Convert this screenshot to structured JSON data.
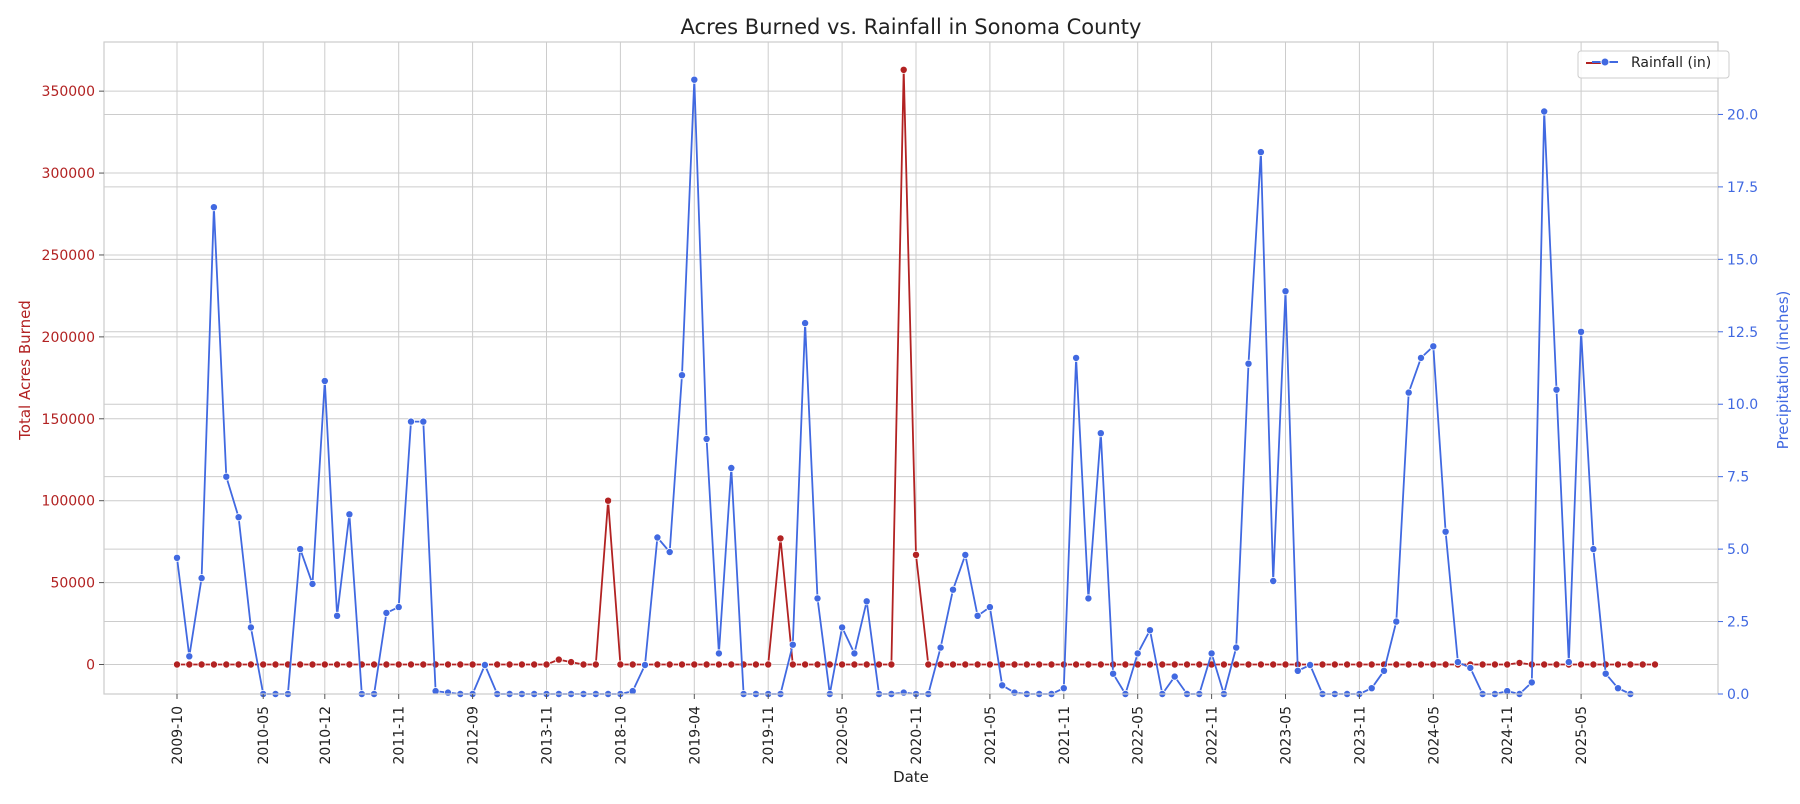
{
  "chart_data": {
    "type": "line",
    "title": "Acres Burned vs. Rainfall in Sonoma County",
    "xlabel": "Date",
    "ylabel_left": "Total Acres Burned",
    "ylabel_right": "Precipitation (inches)",
    "ylim_left": [
      -18000,
      380000
    ],
    "ylim_right": [
      0,
      22.5
    ],
    "yticks_left": [
      0,
      50000,
      100000,
      150000,
      200000,
      250000,
      300000,
      350000
    ],
    "yticks_right": [
      "0.0",
      "2.5",
      "5.0",
      "7.5",
      "10.0",
      "12.5",
      "15.0",
      "17.5",
      "20.0"
    ],
    "xtick_labels": [
      "2009-10",
      "2010-05",
      "2010-12",
      "2011-11",
      "2012-09",
      "2013-11",
      "2018-10",
      "2019-04",
      "2019-11",
      "2020-05",
      "2020-11",
      "2021-05",
      "2021-11",
      "2022-05",
      "2022-11",
      "2023-05",
      "2023-11",
      "2024-05",
      "2024-11",
      "2025-05"
    ],
    "xtick_index": [
      0,
      7,
      12,
      18,
      24,
      30,
      36,
      42,
      48,
      54,
      60,
      66,
      72,
      78,
      84,
      90,
      96,
      102,
      108,
      114
    ],
    "grid": true,
    "legend": {
      "position": "top-right",
      "entries": [
        "Rainfall (in)"
      ]
    },
    "series": [
      {
        "name": "Total Acres Burned",
        "axis": "left",
        "color": "#b22222",
        "values": [
          0,
          0,
          0,
          0,
          0,
          0,
          0,
          0,
          0,
          0,
          0,
          0,
          0,
          0,
          0,
          0,
          0,
          0,
          0,
          0,
          0,
          0,
          0,
          0,
          0,
          0,
          0,
          0,
          0,
          0,
          0,
          3000,
          1500,
          0,
          0,
          100000,
          0,
          0,
          0,
          0,
          0,
          0,
          0,
          0,
          0,
          0,
          0,
          0,
          0,
          77000,
          0,
          0,
          0,
          0,
          0,
          0,
          0,
          0,
          0,
          363000,
          67000,
          0,
          0,
          0,
          0,
          0,
          0,
          0,
          0,
          0,
          0,
          0,
          0,
          0,
          0,
          0,
          0,
          0,
          0,
          0,
          0,
          0,
          0,
          0,
          0,
          0,
          0,
          0,
          0,
          0,
          0,
          0,
          0,
          0,
          0,
          0,
          0,
          0,
          0,
          0,
          0,
          0,
          0,
          0,
          0,
          0,
          0,
          0,
          0,
          1000,
          0,
          0,
          0,
          0,
          0,
          0,
          0,
          0,
          0,
          0,
          0
        ]
      },
      {
        "name": "Rainfall (in)",
        "axis": "right",
        "color": "#4169e1",
        "values": [
          4.7,
          1.3,
          4.0,
          16.8,
          7.5,
          6.1,
          2.3,
          0,
          0,
          0,
          5.0,
          3.8,
          10.8,
          2.7,
          6.2,
          0,
          0,
          2.8,
          3.0,
          9.4,
          9.4,
          0.1,
          0.05,
          0,
          0,
          1.0,
          0,
          0,
          0,
          0,
          0,
          0,
          0,
          0,
          0,
          0,
          0,
          0.1,
          1.0,
          5.4,
          4.9,
          11.0,
          21.2,
          8.8,
          1.4,
          7.8,
          0,
          0,
          0,
          0,
          1.7,
          12.8,
          3.3,
          0,
          2.3,
          1.4,
          3.2,
          0,
          0,
          0.05,
          0,
          0,
          1.6,
          3.6,
          4.8,
          2.7,
          3.0,
          0.3,
          0.05,
          0,
          0,
          0,
          0.2,
          11.6,
          3.3,
          9.0,
          0.7,
          0,
          1.4,
          2.2,
          0,
          0.6,
          0,
          0,
          1.4,
          0,
          1.6,
          11.4,
          18.7,
          3.9,
          13.9,
          0.8,
          1.0,
          0,
          0,
          0,
          0,
          0.2,
          0.8,
          2.5,
          10.4,
          11.6,
          12.0,
          5.6,
          1.1,
          0.9,
          0,
          0,
          0.1,
          0,
          0.4,
          20.1,
          10.5,
          1.1,
          12.5,
          5.0,
          0.7,
          0.2,
          0
        ]
      }
    ]
  }
}
